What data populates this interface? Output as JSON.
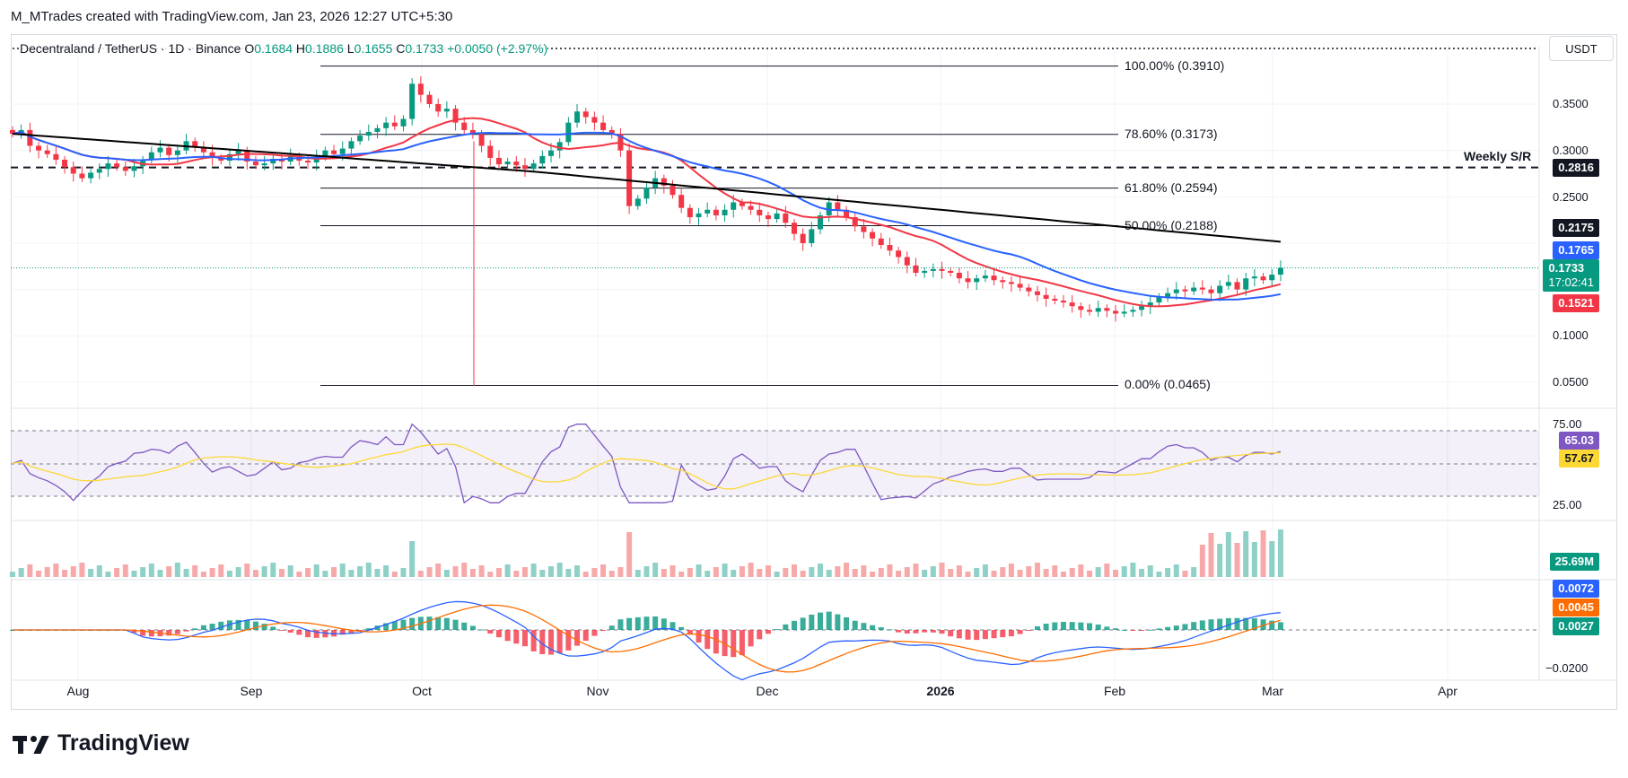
{
  "header": {
    "credit": "M_MTrades created with TradingView.com, Jan 23, 2026 12:27 UTC+5:30"
  },
  "legend": {
    "symbol": "Decentraland / TetherUS · 1D · Binance",
    "open_label": "O",
    "open": "0.1684",
    "high_label": "H",
    "high": "0.1886",
    "low_label": "L",
    "low": "0.1655",
    "close_label": "C",
    "close": "0.1733",
    "change": "+0.0050 (+2.97%)"
  },
  "currency": "USDT",
  "price_axis": [
    "0.3500",
    "0.3000",
    "0.2500",
    "0.1000",
    "0.0500"
  ],
  "rsi_axis": [
    "75.00",
    "25.00"
  ],
  "macd_axis": [
    "−0.0200"
  ],
  "tags": {
    "weekly_sr": "0.2816",
    "sma200": "0.2175",
    "sma100": "0.1765",
    "price": "0.1733",
    "countdown": "17:02:41",
    "sma50": "0.1521",
    "rsi": "65.03",
    "rsi_ma": "57.67",
    "volume": "25.69M",
    "macd": "0.0072",
    "signal": "0.0045",
    "hist": "0.0027"
  },
  "fib_levels": [
    {
      "label": "100.00% (0.3910)",
      "price": 0.391
    },
    {
      "label": "78.60% (0.3173)",
      "price": 0.3173
    },
    {
      "label": "61.80% (0.2594)",
      "price": 0.2594
    },
    {
      "label": "50.00% (0.2188)",
      "price": 0.2188
    },
    {
      "label": "0.00% (0.0465)",
      "price": 0.0465
    }
  ],
  "weekly_sr_label": "Weekly S/R",
  "time_axis": [
    "Aug",
    "Sep",
    "Oct",
    "Nov",
    "Dec",
    "2026",
    "Feb",
    "Mar",
    "Apr"
  ],
  "brand": "TradingView",
  "colors": {
    "up": "#089981",
    "down": "#f23645",
    "sma50": "#f23645",
    "sma100": "#2962ff",
    "sma200": "#000000",
    "rsi": "#7e57c2",
    "rsi_ma": "#fdd835",
    "macd": "#2962ff",
    "signal": "#ff6d00",
    "vol_up": "#8fd1c6",
    "vol_down": "#f7a9a9"
  },
  "chart_data": {
    "type": "candlestick",
    "symbol": "Decentraland / TetherUS",
    "interval": "1D",
    "x_range": [
      "2025-07-22",
      "2026-04-30"
    ],
    "y_range": [
      0.03,
      0.41
    ],
    "approx_closes": [
      0.318,
      0.322,
      0.305,
      0.3,
      0.296,
      0.29,
      0.282,
      0.275,
      0.27,
      0.276,
      0.28,
      0.286,
      0.282,
      0.278,
      0.283,
      0.29,
      0.298,
      0.303,
      0.295,
      0.3,
      0.31,
      0.304,
      0.298,
      0.292,
      0.289,
      0.296,
      0.3,
      0.288,
      0.284,
      0.286,
      0.291,
      0.288,
      0.294,
      0.289,
      0.287,
      0.293,
      0.3,
      0.296,
      0.302,
      0.31,
      0.316,
      0.32,
      0.324,
      0.33,
      0.326,
      0.334,
      0.372,
      0.36,
      0.35,
      0.342,
      0.345,
      0.33,
      0.322,
      0.318,
      0.305,
      0.292,
      0.285,
      0.288,
      0.284,
      0.28,
      0.286,
      0.294,
      0.3,
      0.309,
      0.33,
      0.342,
      0.336,
      0.33,
      0.322,
      0.318,
      0.3,
      0.24,
      0.248,
      0.26,
      0.27,
      0.262,
      0.252,
      0.238,
      0.228,
      0.232,
      0.236,
      0.23,
      0.236,
      0.244,
      0.24,
      0.236,
      0.23,
      0.226,
      0.232,
      0.222,
      0.21,
      0.2,
      0.215,
      0.23,
      0.244,
      0.236,
      0.228,
      0.218,
      0.212,
      0.205,
      0.198,
      0.192,
      0.185,
      0.176,
      0.168,
      0.17,
      0.172,
      0.17,
      0.168,
      0.162,
      0.158,
      0.162,
      0.165,
      0.16,
      0.158,
      0.156,
      0.152,
      0.148,
      0.144,
      0.14,
      0.138,
      0.136,
      0.132,
      0.128,
      0.126,
      0.13,
      0.127,
      0.124,
      0.126,
      0.128,
      0.132,
      0.136,
      0.142,
      0.146,
      0.15,
      0.148,
      0.152,
      0.15,
      0.146,
      0.154,
      0.158,
      0.15,
      0.162,
      0.164,
      0.16,
      0.166,
      0.1733
    ],
    "sma_50_end": 0.1521,
    "sma_100_end": 0.1765,
    "sma_200_end": 0.2175,
    "rsi_14_end": 65.03,
    "rsi_ma_end": 57.67,
    "volume_end": "25.69M",
    "macd_end": 0.0072,
    "signal_end": 0.0045,
    "hist_end": 0.0027
  }
}
